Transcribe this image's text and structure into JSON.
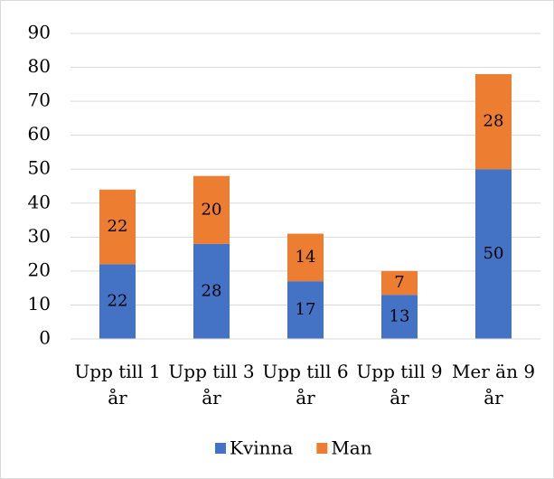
{
  "chart_data": {
    "type": "stacked_bar",
    "categories": [
      "Upp till 1 år",
      "Upp till 3 år",
      "Upp till 6 år",
      "Upp till 9 år",
      "Mer än 9 år"
    ],
    "series": [
      {
        "name": "Kvinna",
        "color": "#4472c4",
        "values": [
          22,
          28,
          17,
          13,
          50
        ]
      },
      {
        "name": "Man",
        "color": "#ed7d31",
        "values": [
          22,
          20,
          14,
          7,
          28
        ]
      }
    ],
    "ylim": [
      0,
      90
    ],
    "yticks": [
      0,
      10,
      20,
      30,
      40,
      50,
      60,
      70,
      80,
      90
    ],
    "grid": true,
    "legend": "bottom"
  }
}
